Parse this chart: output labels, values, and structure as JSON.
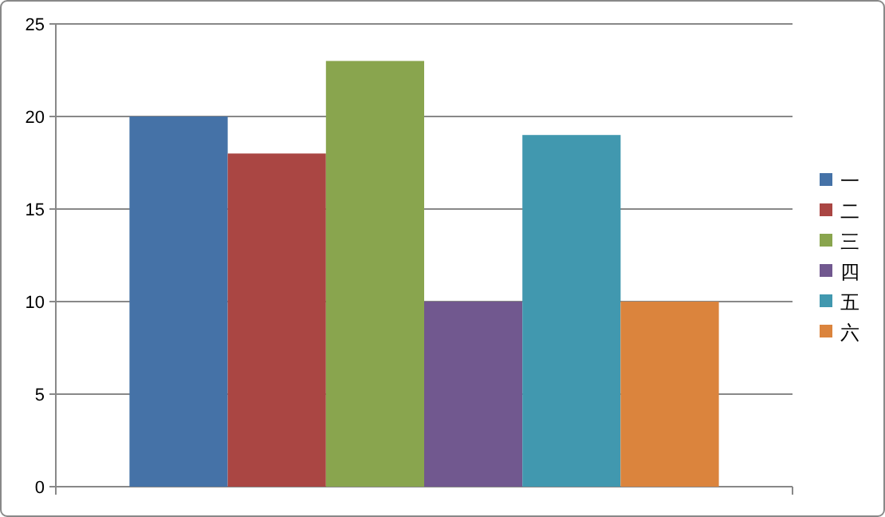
{
  "chart_data": {
    "type": "bar",
    "categories": [
      null
    ],
    "series": [
      {
        "name": "一",
        "color": "#4572a7",
        "values": [
          20
        ]
      },
      {
        "name": "二",
        "color": "#aa4643",
        "values": [
          18
        ]
      },
      {
        "name": "三",
        "color": "#89a54e",
        "values": [
          23
        ]
      },
      {
        "name": "四",
        "color": "#71588f",
        "values": [
          10
        ]
      },
      {
        "name": "五",
        "color": "#4198af",
        "values": [
          19
        ]
      },
      {
        "name": "六",
        "color": "#db843d",
        "values": [
          10
        ]
      }
    ],
    "ylim": [
      0,
      25
    ],
    "yticks": [
      0,
      5,
      10,
      15,
      20,
      25
    ],
    "grid": "y",
    "legend": "right"
  }
}
